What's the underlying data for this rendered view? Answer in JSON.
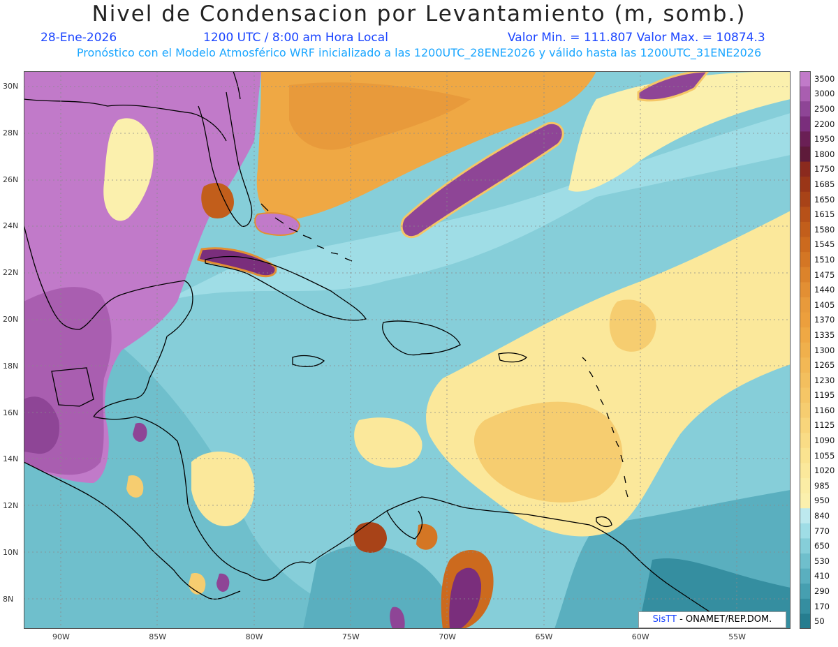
{
  "header": {
    "title": "Nivel de Condensacion por Levantamiento (m, somb.)",
    "date": "28-Ene-2026",
    "time": "1200 UTC / 8:00 am Hora Local",
    "min_max": "Valor Min. = 111.807  Valor Max. = 10874.3",
    "description": "Pronóstico con el Modelo Atmosférico WRF inicializado a las 1200UTC_28ENE2026 y válido hasta las  1200UTC_31ENE2026"
  },
  "axes": {
    "lon_labels": [
      "90W",
      "85W",
      "80W",
      "75W",
      "70W",
      "65W",
      "60W",
      "55W"
    ],
    "lat_labels": [
      "30N",
      "28N",
      "26N",
      "24N",
      "22N",
      "20N",
      "18N",
      "16N",
      "14N",
      "12N",
      "10N",
      "8N"
    ]
  },
  "colorbar": {
    "labels": [
      "3500",
      "3000",
      "2500",
      "2200",
      "1950",
      "1800",
      "1750",
      "1685",
      "1650",
      "1615",
      "1580",
      "1545",
      "1510",
      "1475",
      "1440",
      "1405",
      "1370",
      "1335",
      "1300",
      "1265",
      "1230",
      "1195",
      "1160",
      "1125",
      "1090",
      "1055",
      "1020",
      "985",
      "950",
      "840",
      "770",
      "650",
      "530",
      "410",
      "290",
      "170",
      "50"
    ],
    "colors": [
      "#c17ac9",
      "#a95eb0",
      "#8e4596",
      "#7a2e7c",
      "#6a1f55",
      "#5e1a3a",
      "#8b2a1e",
      "#9a3618",
      "#a84318",
      "#b75119",
      "#c25e1b",
      "#cc6a1e",
      "#d47624",
      "#dc832b",
      "#e38f33",
      "#e89a3b",
      "#ec9f3d",
      "#efa844",
      "#f0b04c",
      "#f2b855",
      "#f3bf5e",
      "#f5c666",
      "#f6cd70",
      "#f8d57b",
      "#f9dc86",
      "#fae390",
      "#fbe89b",
      "#fbeda5",
      "#fbf0ad",
      "#bde9ee",
      "#9fdde6",
      "#86ced9",
      "#6fbfcc",
      "#5aafbf",
      "#469fb0",
      "#358ea0",
      "#267d8f"
    ]
  },
  "credit": {
    "brand": "SisTT",
    "text": " - ONAMET/REP.DOM."
  }
}
